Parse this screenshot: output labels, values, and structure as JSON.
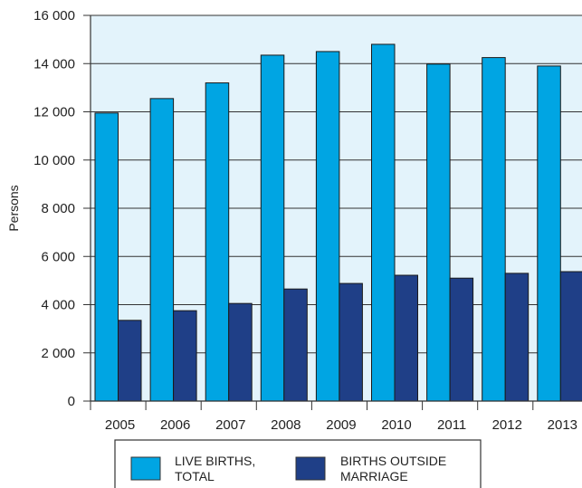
{
  "chart_data": {
    "type": "bar",
    "categories": [
      "2005",
      "2006",
      "2007",
      "2008",
      "2009",
      "2010",
      "2011",
      "2012",
      "2013"
    ],
    "series": [
      {
        "name": "LIVE BIRTHS, TOTAL",
        "color": "#00a5e3",
        "values": [
          11950,
          12550,
          13200,
          14350,
          14500,
          14800,
          13980,
          14250,
          13900
        ]
      },
      {
        "name": "BIRTHS OUTSIDE MARRIAGE",
        "color": "#1f3f87",
        "values": [
          3350,
          3750,
          4050,
          4650,
          4880,
          5220,
          5100,
          5300,
          5370
        ]
      }
    ],
    "ylabel": "Persons",
    "ylim": [
      0,
      16000
    ],
    "yticks": [
      0,
      2000,
      4000,
      6000,
      8000,
      10000,
      12000,
      14000,
      16000
    ],
    "ytick_labels": [
      "0",
      "2 000",
      "4 000",
      "6 000",
      "8 000",
      "10 000",
      "12 000",
      "14 000",
      "16 000"
    ],
    "grid": true,
    "plot_background": "#e3f3fb",
    "legend": {
      "placement": "bottom",
      "items": [
        {
          "lines": [
            "LIVE BIRTHS,",
            "TOTAL"
          ]
        },
        {
          "lines": [
            "BIRTHS OUTSIDE",
            "MARRIAGE"
          ]
        }
      ]
    }
  }
}
